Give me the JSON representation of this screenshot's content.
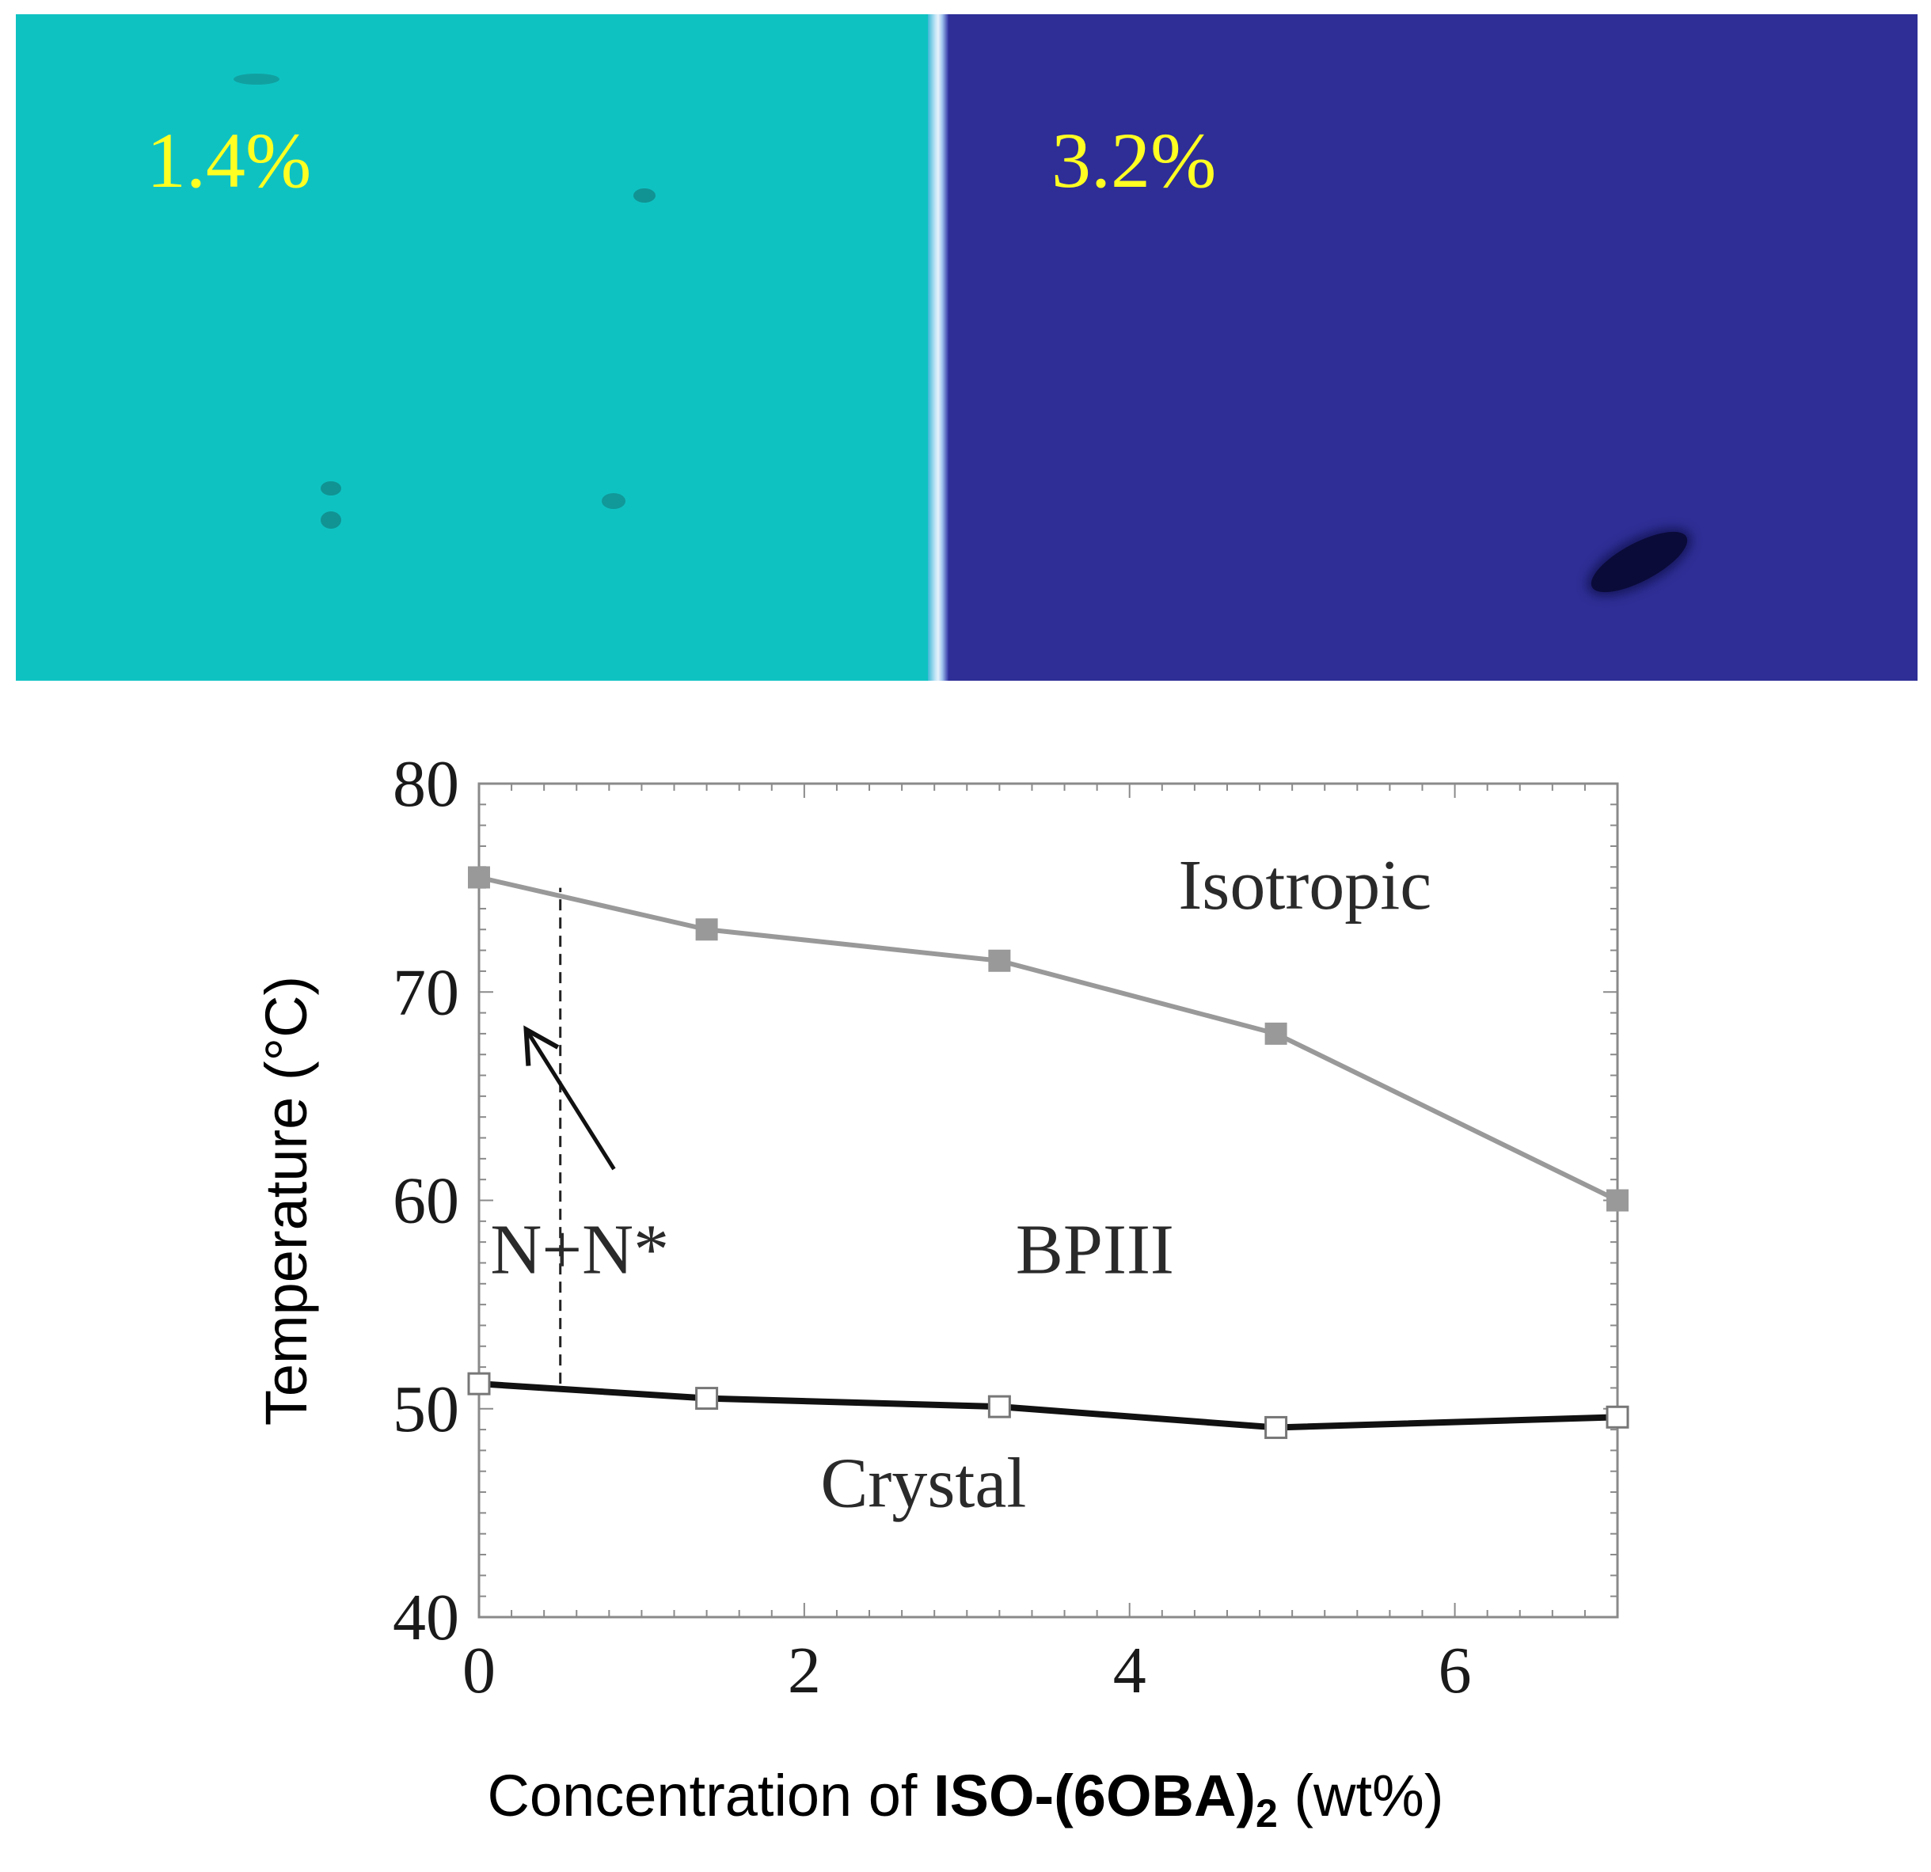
{
  "photos": {
    "left": {
      "label": "1.4%",
      "color": "#0fc2c2"
    },
    "right": {
      "label": "3.2%",
      "color": "#2e2e96"
    },
    "label_color": "#ffff22"
  },
  "chart_data": {
    "type": "line",
    "x_ticks": [
      "0",
      "2",
      "4",
      "6"
    ],
    "y_ticks": [
      "40",
      "50",
      "60",
      "70",
      "80"
    ],
    "xlim": [
      0,
      7
    ],
    "ylim": [
      40,
      80
    ],
    "xlabel_parts": {
      "prefix": "Concentration of ",
      "compound": "ISO-(6OBA)",
      "subscript": "2",
      "suffix": " (wt%)"
    },
    "ylabel": "Temperature (°C)",
    "grid": false,
    "series": [
      {
        "color": "#999999",
        "marker": "filled-square",
        "points": [
          [
            0,
            75.5
          ],
          [
            1.4,
            73
          ],
          [
            3.2,
            71.5
          ],
          [
            4.9,
            68
          ],
          [
            7,
            60
          ]
        ]
      },
      {
        "color": "#111111",
        "marker": "open-square",
        "points": [
          [
            0,
            51.2
          ],
          [
            1.4,
            50.5
          ],
          [
            3.2,
            50.1
          ],
          [
            4.9,
            49.1
          ],
          [
            7,
            49.6
          ]
        ]
      }
    ],
    "boundary_x": 0.5,
    "boundary_y_range": [
      51.2,
      75
    ],
    "annotations": {
      "isotropic": {
        "text": "Isotropic",
        "x": 4.3,
        "y": 74
      },
      "bpiii": {
        "text": "BPIII",
        "x": 3.3,
        "y": 56.5
      },
      "crystal": {
        "text": "Crystal",
        "x": 2.1,
        "y": 45.3
      },
      "nn": {
        "text": "N+N*",
        "x": 0.07,
        "y": 56.5
      },
      "arrow": {
        "from": [
          0.83,
          61.5
        ],
        "to": [
          0.29,
          68.2
        ]
      }
    }
  }
}
